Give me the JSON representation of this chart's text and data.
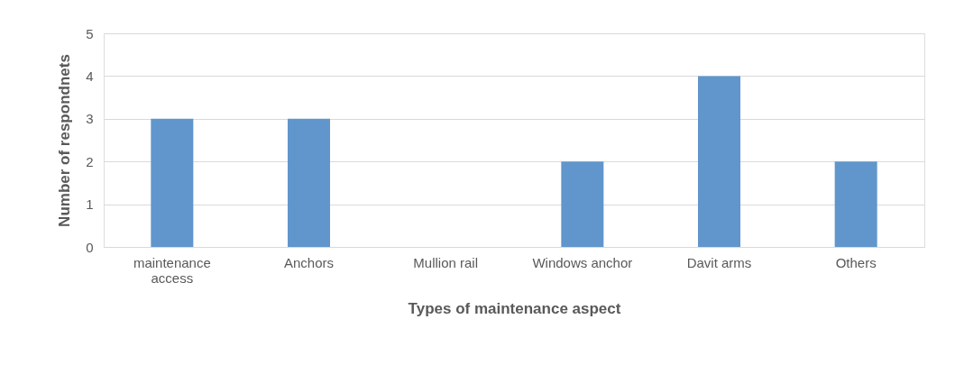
{
  "chart_data": {
    "type": "bar",
    "xlabel": "Types of maintenance aspect",
    "ylabel": "Number of respondnets",
    "categories": [
      "maintenance access",
      "Anchors",
      "Mullion rail",
      "Windows anchor",
      "Davit arms",
      "Others"
    ],
    "values": [
      3,
      3,
      0,
      2,
      4,
      2
    ],
    "color": "#6096cc",
    "ylim": [
      0,
      5
    ],
    "yticks": [
      0,
      1,
      2,
      3,
      4,
      5
    ],
    "grid": "y"
  }
}
